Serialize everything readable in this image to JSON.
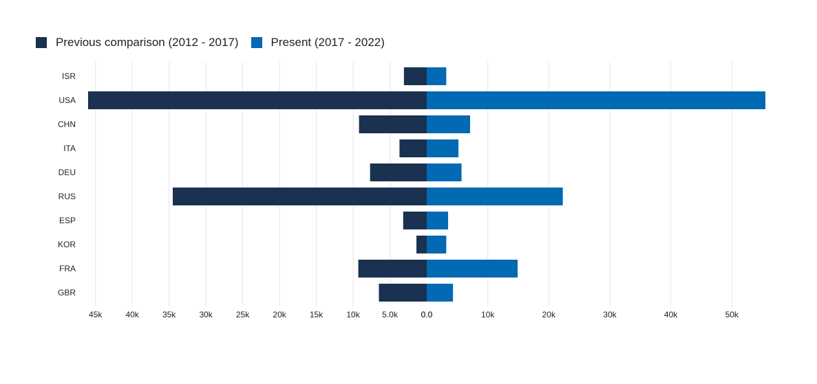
{
  "legend": [
    {
      "label": "Previous comparison (2012 - 2017)",
      "color": "#1a3152"
    },
    {
      "label": "Present (2017 - 2022)",
      "color": "#0269b3"
    }
  ],
  "chart_data": {
    "type": "bar",
    "orientation": "horizontal-butterfly",
    "categories": [
      "ISR",
      "USA",
      "CHN",
      "ITA",
      "DEU",
      "RUS",
      "ESP",
      "KOR",
      "FRA",
      "GBR"
    ],
    "series": [
      {
        "name": "Previous comparison (2012 - 2017)",
        "side": "left",
        "color": "#1a3152",
        "values": [
          3100,
          46100,
          9200,
          3700,
          7700,
          34500,
          3200,
          1400,
          9300,
          6500
        ],
        "xlim": [
          0,
          46000
        ],
        "ticks": [
          {
            "value": 45000,
            "label": "45k"
          },
          {
            "value": 40000,
            "label": "40k"
          },
          {
            "value": 35000,
            "label": "35k"
          },
          {
            "value": 30000,
            "label": "30k"
          },
          {
            "value": 25000,
            "label": "25k"
          },
          {
            "value": 20000,
            "label": "20k"
          },
          {
            "value": 15000,
            "label": "15k"
          },
          {
            "value": 10000,
            "label": "10k"
          },
          {
            "value": 5000,
            "label": "5.0k"
          },
          {
            "value": 0,
            "label": "0.0"
          }
        ]
      },
      {
        "name": "Present (2017 - 2022)",
        "side": "right",
        "color": "#0269b3",
        "values": [
          3200,
          55500,
          7100,
          5200,
          5700,
          22300,
          3500,
          3200,
          14900,
          4300
        ],
        "xlim": [
          0,
          55500
        ],
        "ticks": [
          {
            "value": 0,
            "label": "0.0"
          },
          {
            "value": 10000,
            "label": "10k"
          },
          {
            "value": 20000,
            "label": "20k"
          },
          {
            "value": 30000,
            "label": "30k"
          },
          {
            "value": 40000,
            "label": "40k"
          },
          {
            "value": 50000,
            "label": "50k"
          }
        ]
      }
    ],
    "grid": true,
    "legend_position": "top-left"
  }
}
